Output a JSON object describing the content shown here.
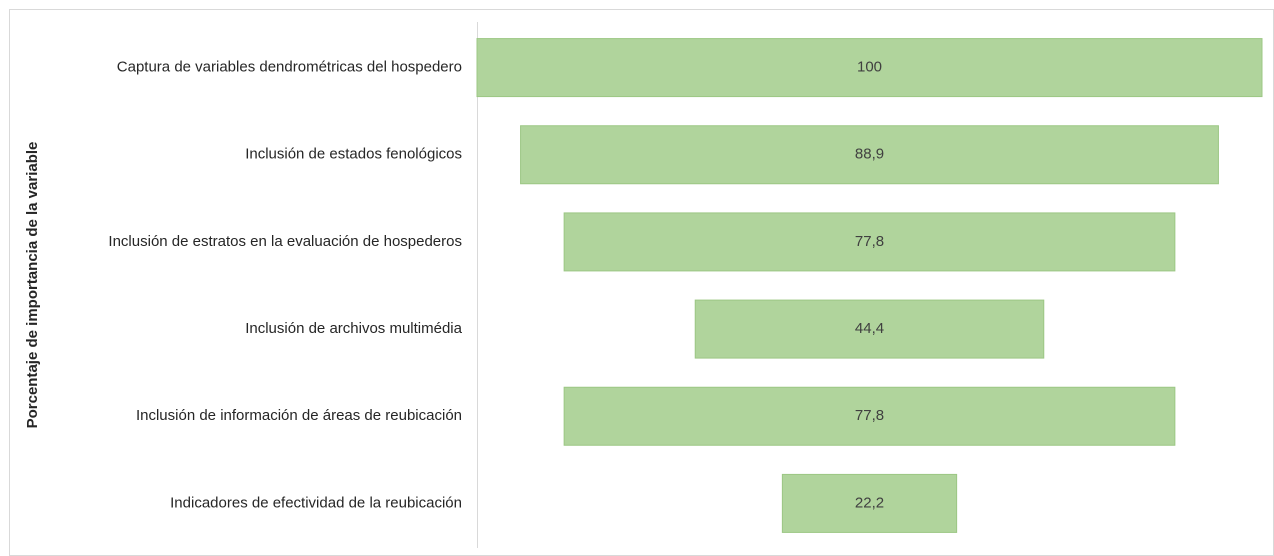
{
  "chart_data": {
    "type": "funnel",
    "y_label": "Porcentaje de importancia de la variable",
    "categories": [
      "Captura de variables dendrométricas del hospedero",
      "Inclusión de estados fenológicos",
      "Inclusión de estratos en la evaluación de hospederos",
      "Inclusión de archivos multimédia",
      "Inclusión de información de áreas de reubicación",
      "Indicadores de efectividad de la reubicación"
    ],
    "values": [
      100,
      88.9,
      77.8,
      44.4,
      77.8,
      22.2
    ],
    "value_labels": [
      "100",
      "88,9",
      "77,8",
      "44,4",
      "77,8",
      "22,2"
    ],
    "color": "#b0d49c"
  }
}
